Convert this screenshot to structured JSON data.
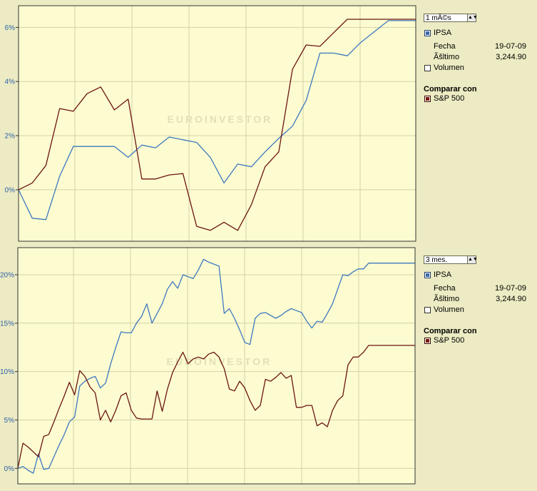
{
  "charts": [
    {
      "id": "chart-1m",
      "period": "1 mÃ©s",
      "watermark": "EUROINVESTOR",
      "legend": {
        "primary": "IPSA",
        "fecha_label": "Fecha",
        "fecha_value": "19-07-09",
        "ultimo_label": "Ãšltimo",
        "ultimo_value": "3,244.90",
        "volumen_label": "Volumen",
        "compare_title": "Comparar con",
        "compare_series": "S&P 500"
      },
      "colors": {
        "ipsa": "#3f78c0",
        "sp500": "#6b1410",
        "grid": "#d4d2a6",
        "plot_bg": "#fcfcd0"
      }
    },
    {
      "id": "chart-3m",
      "period": "3 mes.",
      "watermark": "EUROINVESTOR",
      "legend": {
        "primary": "IPSA",
        "fecha_label": "Fecha",
        "fecha_value": "19-07-09",
        "ultimo_label": "Ãšltimo",
        "ultimo_value": "3,244.90",
        "volumen_label": "Volumen",
        "compare_title": "Comparar con",
        "compare_series": "S&P 500"
      },
      "colors": {
        "ipsa": "#3f78c0",
        "sp500": "#6b1410",
        "grid": "#d4d2a6",
        "plot_bg": "#fcfcd0"
      }
    }
  ],
  "chart_data": [
    {
      "type": "line",
      "title": "",
      "xlabel": "",
      "ylabel": "",
      "ylim": [
        -1.9,
        6.8
      ],
      "xlim": [
        0,
        29
      ],
      "yticks": [
        0,
        2,
        4,
        6
      ],
      "ytick_labels": [
        "0%",
        "2%",
        "4%",
        "6%"
      ],
      "grid": true,
      "x": [
        0,
        1,
        2,
        3,
        4,
        5,
        6,
        7,
        8,
        9,
        10,
        11,
        12,
        13,
        14,
        15,
        16,
        17,
        18,
        19,
        20,
        21,
        22,
        23,
        24,
        25,
        26,
        27,
        28,
        29
      ],
      "series": [
        {
          "name": "IPSA",
          "color": "#3f78c0",
          "values": [
            0,
            -1.05,
            -1.1,
            0.5,
            1.6,
            1.6,
            1.6,
            1.6,
            1.2,
            1.65,
            1.55,
            1.95,
            1.85,
            1.75,
            1.2,
            0.25,
            0.95,
            0.85,
            1.4,
            1.9,
            2.35,
            3.3,
            5.05,
            5.05,
            4.95,
            5.45,
            5.85,
            6.25,
            6.25,
            6.25
          ]
        },
        {
          "name": "S&P 500",
          "color": "#6b1410",
          "values": [
            0,
            0.25,
            0.9,
            3.0,
            2.9,
            3.55,
            3.8,
            2.95,
            3.35,
            0.4,
            0.4,
            0.55,
            0.6,
            -1.35,
            -1.5,
            -1.2,
            -1.5,
            -0.55,
            0.85,
            1.4,
            4.45,
            5.35,
            5.3,
            5.8,
            6.3,
            6.3,
            6.3,
            6.3,
            6.3,
            6.3
          ]
        }
      ]
    },
    {
      "type": "line",
      "title": "",
      "xlabel": "",
      "ylabel": "",
      "ylim": [
        -1.6,
        22.8
      ],
      "xlim": [
        0,
        77
      ],
      "yticks": [
        0,
        5,
        10,
        15,
        20
      ],
      "ytick_labels": [
        "0%",
        "5%",
        "10%",
        "15%",
        "20%"
      ],
      "grid": true,
      "x": [
        0,
        1,
        2,
        3,
        4,
        5,
        6,
        7,
        8,
        9,
        10,
        11,
        12,
        13,
        14,
        15,
        16,
        17,
        18,
        19,
        20,
        21,
        22,
        23,
        24,
        25,
        26,
        27,
        28,
        29,
        30,
        31,
        32,
        33,
        34,
        35,
        36,
        37,
        38,
        39,
        40,
        41,
        42,
        43,
        44,
        45,
        46,
        47,
        48,
        49,
        50,
        51,
        52,
        53,
        54,
        55,
        56,
        57,
        58,
        59,
        60,
        61,
        62,
        63,
        64,
        65,
        66,
        67,
        68,
        69,
        70,
        71,
        72,
        73,
        74,
        75,
        76,
        77
      ],
      "series": [
        {
          "name": "IPSA",
          "color": "#3f78c0",
          "values": [
            0,
            0.2,
            -0.2,
            -0.5,
            1.5,
            -0.1,
            0,
            1.2,
            2.4,
            3.5,
            4.8,
            5.3,
            8.5,
            9.0,
            9.3,
            9.5,
            8.3,
            8.8,
            10.8,
            12.5,
            14.1,
            14.0,
            14.0,
            15.0,
            15.7,
            17.0,
            15.0,
            16.0,
            17.0,
            18.5,
            19.3,
            18.6,
            20.0,
            19.8,
            19.6,
            20.5,
            21.6,
            21.3,
            21.1,
            20.9,
            16.0,
            16.5,
            15.5,
            14.3,
            13.0,
            12.8,
            15.5,
            16.0,
            16.1,
            15.8,
            15.5,
            15.8,
            16.2,
            16.5,
            16.3,
            16.1,
            15.2,
            14.5,
            15.2,
            15.1,
            16.0,
            17.0,
            18.5,
            20.0,
            19.9,
            20.3,
            20.6,
            20.6,
            21.2,
            21.2,
            21.2,
            21.2,
            21.2,
            21.2,
            21.2,
            21.2,
            21.2,
            21.2
          ]
        },
        {
          "name": "S&P 500",
          "color": "#6b1410",
          "values": [
            0,
            2.6,
            2.2,
            1.7,
            1.2,
            3.3,
            3.5,
            4.8,
            6.2,
            7.5,
            8.9,
            7.6,
            10.1,
            9.5,
            8.4,
            7.8,
            5.0,
            6.0,
            4.8,
            6.0,
            7.5,
            7.8,
            6.0,
            5.2,
            5.1,
            5.1,
            5.1,
            8.0,
            5.9,
            8.2,
            9.9,
            11.0,
            12.0,
            10.8,
            11.3,
            11.5,
            11.3,
            11.8,
            12.0,
            11.5,
            10.3,
            8.2,
            8.0,
            9.0,
            8.3,
            7.0,
            6.0,
            6.5,
            9.2,
            9.0,
            9.4,
            9.9,
            9.3,
            9.6,
            6.3,
            6.3,
            6.5,
            6.5,
            4.4,
            4.7,
            4.3,
            6.0,
            7.0,
            7.5,
            10.7,
            11.5,
            11.5,
            12.0,
            12.7,
            12.7,
            12.7,
            12.7,
            12.7,
            12.7,
            12.7,
            12.7,
            12.7,
            12.7
          ]
        }
      ]
    }
  ]
}
